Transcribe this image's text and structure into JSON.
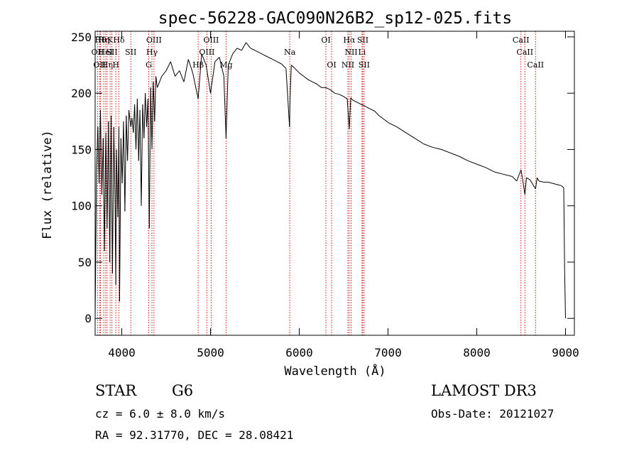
{
  "chart_data": {
    "type": "line",
    "title": "spec-56228-GAC090N26B2_sp12-025.fits",
    "xlabel": "Wavelength (Å)",
    "ylabel": "Flux (relative)",
    "xlim": [
      3700,
      9100
    ],
    "ylim": [
      -15,
      255
    ],
    "x_ticks": [
      4000,
      5000,
      6000,
      7000,
      8000,
      9000
    ],
    "x_tick_labels": [
      "4000",
      "5000",
      "6000",
      "7000",
      "8000",
      "9000"
    ],
    "y_ticks": [
      0,
      50,
      100,
      150,
      200,
      250
    ],
    "y_tick_labels": [
      "0",
      "50",
      "100",
      "150",
      "200",
      "250"
    ],
    "grid": false,
    "series": [
      {
        "name": "spectrum",
        "color": "#000000",
        "x": [
          3700,
          3715,
          3730,
          3745,
          3760,
          3775,
          3790,
          3805,
          3820,
          3835,
          3850,
          3865,
          3880,
          3895,
          3910,
          3925,
          3933,
          3940,
          3955,
          3968,
          3975,
          3990,
          4005,
          4020,
          4035,
          4050,
          4065,
          4080,
          4102,
          4115,
          4130,
          4145,
          4160,
          4175,
          4190,
          4205,
          4220,
          4235,
          4250,
          4265,
          4280,
          4295,
          4310,
          4325,
          4340,
          4355,
          4370,
          4385,
          4400,
          4450,
          4500,
          4550,
          4600,
          4650,
          4700,
          4750,
          4800,
          4861,
          4900,
          4950,
          5000,
          5050,
          5100,
          5150,
          5175,
          5200,
          5250,
          5300,
          5350,
          5400,
          5450,
          5500,
          5550,
          5600,
          5650,
          5700,
          5750,
          5800,
          5850,
          5875,
          5890,
          5896,
          5910,
          5950,
          6000,
          6050,
          6100,
          6150,
          6200,
          6250,
          6300,
          6350,
          6400,
          6450,
          6500,
          6540,
          6563,
          6580,
          6600,
          6650,
          6700,
          6750,
          6800,
          6850,
          6900,
          6950,
          7000,
          7100,
          7200,
          7300,
          7400,
          7500,
          7600,
          7700,
          7800,
          7900,
          8000,
          8100,
          8200,
          8300,
          8400,
          8450,
          8498,
          8520,
          8542,
          8560,
          8600,
          8662,
          8680,
          8700,
          8750,
          8800,
          8850,
          8900,
          8950,
          8980,
          8990,
          9000
        ],
        "y": [
          0,
          130,
          170,
          120,
          185,
          110,
          160,
          60,
          165,
          80,
          175,
          50,
          180,
          40,
          170,
          100,
          30,
          150,
          90,
          170,
          15,
          160,
          120,
          175,
          95,
          180,
          140,
          185,
          170,
          178,
          165,
          190,
          150,
          195,
          140,
          185,
          100,
          190,
          160,
          200,
          170,
          195,
          80,
          205,
          150,
          210,
          175,
          215,
          205,
          215,
          220,
          228,
          215,
          220,
          210,
          230,
          218,
          195,
          235,
          225,
          200,
          228,
          232,
          215,
          160,
          225,
          235,
          240,
          238,
          245,
          240,
          238,
          236,
          234,
          232,
          230,
          228,
          226,
          222,
          190,
          170,
          195,
          225,
          222,
          218,
          215,
          212,
          210,
          208,
          205,
          205,
          203,
          200,
          199,
          197,
          195,
          168,
          196,
          194,
          192,
          190,
          188,
          186,
          184,
          180,
          177,
          174,
          170,
          165,
          160,
          155,
          152,
          150,
          147,
          144,
          140,
          137,
          134,
          130,
          128,
          126,
          122,
          132,
          122,
          110,
          125,
          123,
          115,
          125,
          122,
          121,
          121,
          120,
          119,
          118,
          116,
          40,
          0
        ]
      }
    ],
    "lines": [
      {
        "wavelength": 3727,
        "row": 1,
        "label": "OII"
      },
      {
        "wavelength": 3750,
        "row": 2,
        "label": "OII"
      },
      {
        "wavelength": 3760,
        "row": 0,
        "label": "Hθ"
      },
      {
        "wavelength": 3797,
        "row": 0,
        "label": "Hη"
      },
      {
        "wavelength": 3819,
        "row": 1,
        "label": "HeI"
      },
      {
        "wavelength": 3835,
        "row": 2,
        "label": "Hη"
      },
      {
        "wavelength": 3869,
        "row": 0,
        "label": "K"
      },
      {
        "wavelength": 3889,
        "row": 1,
        "label": "SII"
      },
      {
        "wavelength": 3933,
        "row": 2,
        "label": "H"
      },
      {
        "wavelength": 3968,
        "row": 0,
        "label": "Hδ"
      },
      {
        "wavelength": 4102,
        "row": 1,
        "label": "SII"
      },
      {
        "wavelength": 4304,
        "row": 2,
        "label": "G"
      },
      {
        "wavelength": 4340,
        "row": 1,
        "label": "Hγ"
      },
      {
        "wavelength": 4363,
        "row": 0,
        "label": "OIII"
      },
      {
        "wavelength": 4861,
        "row": 2,
        "label": "Hβ"
      },
      {
        "wavelength": 4959,
        "row": 1,
        "label": "OIII"
      },
      {
        "wavelength": 5007,
        "row": 0,
        "label": "OIII"
      },
      {
        "wavelength": 5175,
        "row": 2,
        "label": "Mg"
      },
      {
        "wavelength": 5893,
        "row": 1,
        "label": "Na"
      },
      {
        "wavelength": 6300,
        "row": 0,
        "label": "OI"
      },
      {
        "wavelength": 6364,
        "row": 2,
        "label": "OI"
      },
      {
        "wavelength": 6548,
        "row": 2,
        "label": "NII"
      },
      {
        "wavelength": 6563,
        "row": 0,
        "label": "Hα"
      },
      {
        "wavelength": 6584,
        "row": 1,
        "label": "NII"
      },
      {
        "wavelength": 6707,
        "row": 1,
        "label": "Li"
      },
      {
        "wavelength": 6716,
        "row": 0,
        "label": "SII"
      },
      {
        "wavelength": 6731,
        "row": 2,
        "label": "SII"
      },
      {
        "wavelength": 8498,
        "row": 0,
        "label": "CaII"
      },
      {
        "wavelength": 8542,
        "row": 1,
        "label": "CaII"
      },
      {
        "wavelength": 8662,
        "row": 2,
        "label": "CaII"
      }
    ],
    "colors": {
      "line_markers": "#cc0000",
      "spectrum": "#000000",
      "axes": "#000000"
    }
  },
  "info": {
    "object_class": "STAR",
    "subclass": "G6",
    "release": "LAMOST DR3",
    "redshift_line": "cz = 6.0 ± 8.0 km/s",
    "obs_date_line": "Obs-Date: 20121027",
    "coords_line": "RA =  92.31770, DEC =  28.08421"
  }
}
